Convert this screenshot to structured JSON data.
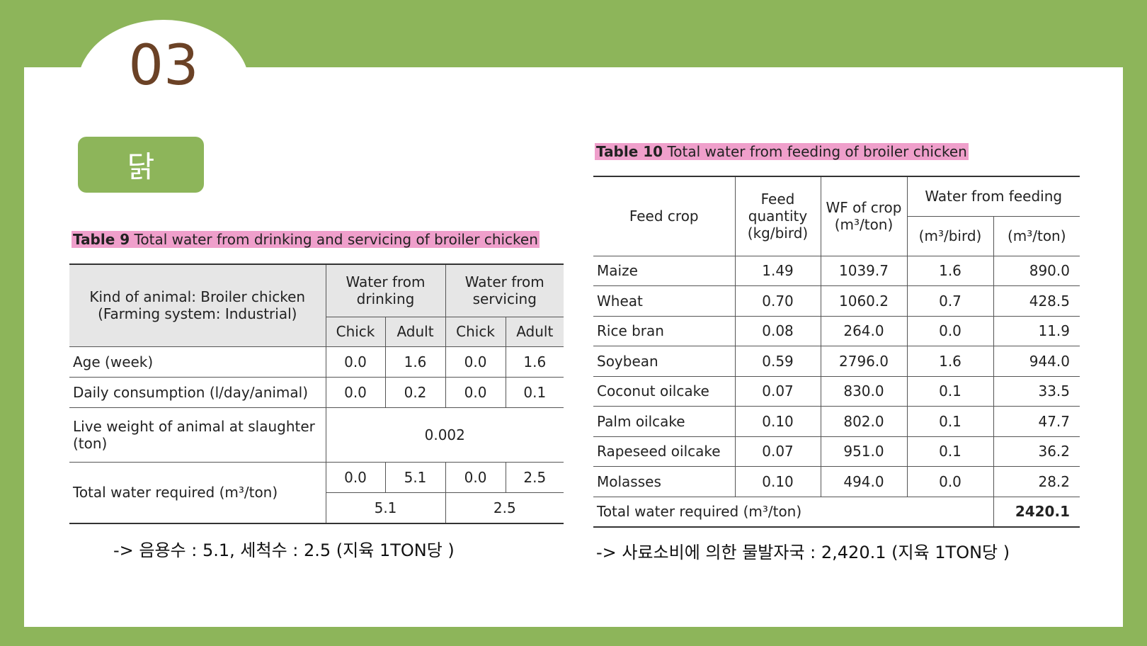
{
  "slide_number": "03",
  "section_label": "닭",
  "table9": {
    "caption_label": "Table 9",
    "caption": "Total water from drinking and servicing of broiler chicken",
    "header": {
      "kind": "Kind of animal: Broiler chicken (Farming system: Industrial)",
      "drinking": "Water from drinking",
      "servicing": "Water from servicing",
      "sub": [
        "Chick",
        "Adult",
        "Chick",
        "Adult"
      ]
    },
    "rows": [
      [
        "Age (week)",
        "0.0",
        "1.6",
        "0.0",
        "1.6"
      ],
      [
        "Daily consumption (l/day/animal)",
        "0.0",
        "0.2",
        "0.0",
        "0.1"
      ]
    ],
    "live_weight": {
      "label": "Live weight of animal at slaughter (ton)",
      "value": "0.002"
    },
    "total": {
      "label": "Total water required (m³/ton)",
      "values": [
        "0.0",
        "5.1",
        "0.0",
        "2.5"
      ],
      "sums": [
        "5.1",
        "2.5"
      ]
    },
    "note": "-> 음용수 : 5.1, 세척수 : 2.5 (지육 1TON당 )"
  },
  "table10": {
    "caption_label": "Table 10",
    "caption": "Total water from feeding of broiler chicken",
    "header": {
      "crop": "Feed crop",
      "quantity": "Feed quantity (kg/bird)",
      "wf": "WF of crop (m³/ton)",
      "water": "Water from feeding",
      "sub": [
        "(m³/bird)",
        "(m³/ton)"
      ]
    },
    "rows": [
      [
        "Maize",
        "1.49",
        "1039.7",
        "1.6",
        "890.0"
      ],
      [
        "Wheat",
        "0.70",
        "1060.2",
        "0.7",
        "428.5"
      ],
      [
        "Rice bran",
        "0.08",
        "264.0",
        "0.0",
        "11.9"
      ],
      [
        "Soybean",
        "0.59",
        "2796.0",
        "1.6",
        "944.0"
      ],
      [
        "Coconut oilcake",
        "0.07",
        "830.0",
        "0.1",
        "33.5"
      ],
      [
        "Palm oilcake",
        "0.10",
        "802.0",
        "0.1",
        "47.7"
      ],
      [
        "Rapeseed oilcake",
        "0.07",
        "951.0",
        "0.1",
        "36.2"
      ],
      [
        "Molasses",
        "0.10",
        "494.0",
        "0.0",
        "28.2"
      ]
    ],
    "total": {
      "label": "Total water required (m³/ton)",
      "value": "2420.1"
    },
    "note": "->  사료소비에 의한 물발자국 : 2,420.1 (지육 1TON당 )"
  }
}
